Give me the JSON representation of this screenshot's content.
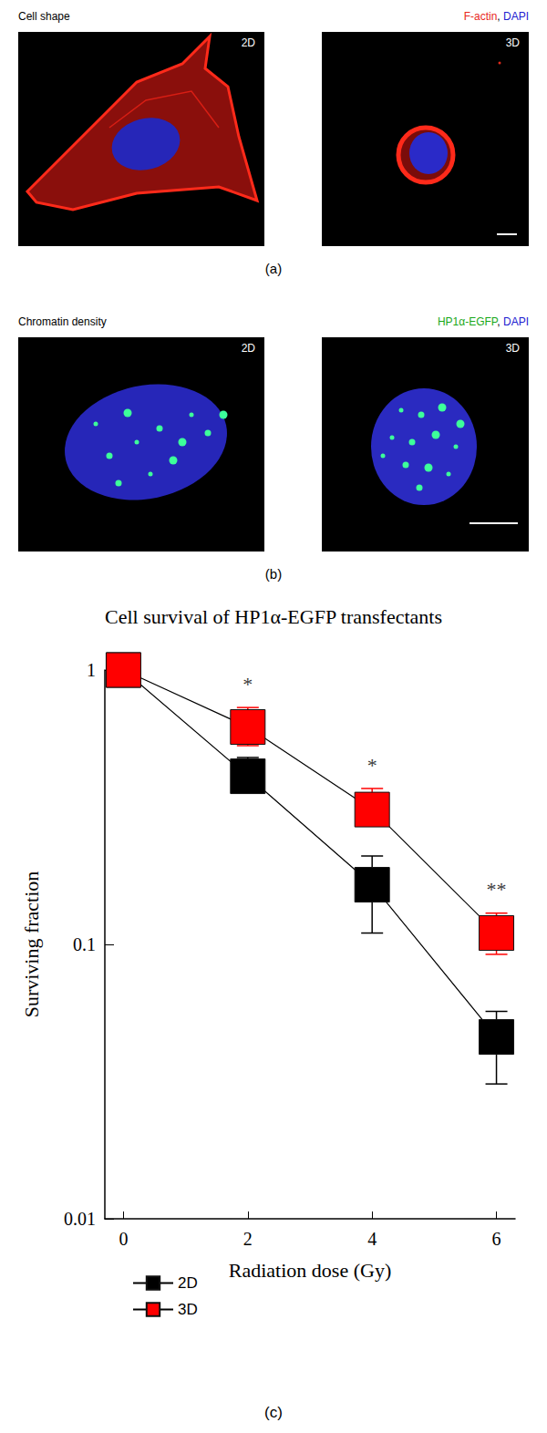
{
  "panels": [
    {
      "label": "(a)",
      "title": "Cell shape",
      "stain": [
        {
          "text": "F-actin",
          "color": "#e8281e"
        },
        {
          "text": ", ",
          "color": "#000000"
        },
        {
          "text": "DAPI",
          "color": "#2020d0"
        }
      ],
      "images": [
        "2D",
        "3D"
      ]
    },
    {
      "label": "(b)",
      "title": "Chromatin density",
      "stain": [
        {
          "text": "HP1α-EGFP",
          "color": "#1aa81a"
        },
        {
          "text": ", ",
          "color": "#000000"
        },
        {
          "text": "DAPI",
          "color": "#2020d0"
        }
      ],
      "images": [
        "2D",
        "3D"
      ]
    }
  ],
  "chart_data": {
    "type": "line",
    "label": "(c)",
    "title": "Cell survival of HP1α-EGFP transfectants",
    "x_label": "Radiation dose (Gy)",
    "y_label": "Surviving fraction",
    "log": "y",
    "x": [
      0,
      2,
      4,
      6
    ],
    "xlim": [
      -0.3,
      6.3
    ],
    "xticks": [
      0,
      2,
      4,
      6
    ],
    "ylim": [
      0.01,
      1
    ],
    "yticks": [
      0.01,
      0.1,
      1
    ],
    "legend": "bottom-left",
    "grid": false,
    "series": [
      {
        "name": "2D",
        "color": "#000000",
        "marker": "square",
        "values": [
          1,
          0.41,
          0.165,
          0.046
        ],
        "error_bars": [
          null,
          [
            0.36,
            0.48
          ],
          [
            0.11,
            0.21
          ],
          [
            0.031,
            0.057
          ]
        ]
      },
      {
        "name": "3D",
        "color": "#ff0000",
        "marker": "square",
        "values": [
          1,
          0.62,
          0.31,
          0.11
        ],
        "error_bars": [
          null,
          [
            0.53,
            0.73
          ],
          [
            0.27,
            0.37
          ],
          [
            0.092,
            0.13
          ]
        ]
      }
    ],
    "annotations": [
      {
        "x": 2,
        "text": "*"
      },
      {
        "x": 4,
        "text": "*"
      },
      {
        "x": 6,
        "text": "**"
      }
    ]
  }
}
